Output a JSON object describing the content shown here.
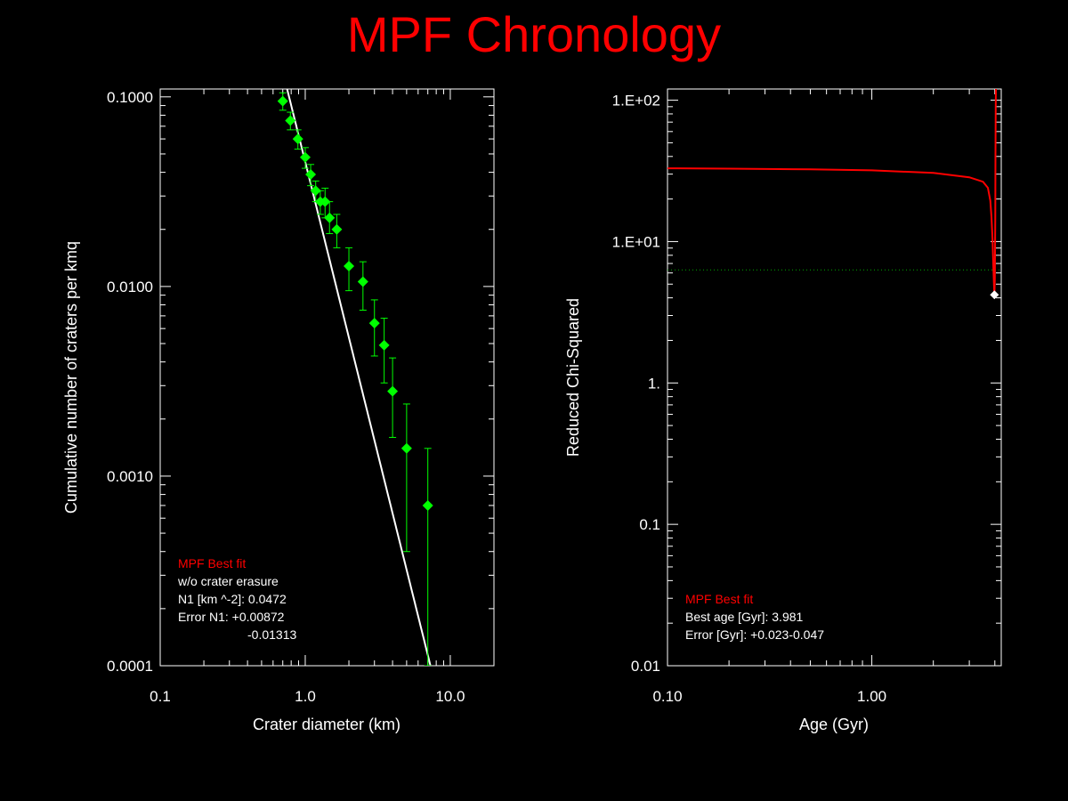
{
  "title": "MPF Chronology",
  "colors": {
    "title": "#ff0000",
    "points": "#00ff00",
    "fit_line": "#ffffff",
    "chi_curve": "#ff0000",
    "chi_threshold": "#00aa00",
    "best_marker": "#ffffff",
    "axes": "#ffffff"
  },
  "chart_data": [
    {
      "type": "scatter",
      "xlabel": "Crater diameter (km)",
      "ylabel": "Cumulative number of craters per kmq",
      "xscale": "log",
      "yscale": "log",
      "xlim": [
        0.1,
        20
      ],
      "ylim": [
        0.0001,
        0.11
      ],
      "x_ticks": [
        "0.1",
        "1.0",
        "10.0"
      ],
      "x_tick_values": [
        0.1,
        1.0,
        10.0
      ],
      "y_ticks": [
        "0.0001",
        "0.0010",
        "0.0100",
        "0.1000"
      ],
      "y_tick_values": [
        0.0001,
        0.001,
        0.01,
        0.1
      ],
      "series": [
        {
          "type": "scatter",
          "marker": "diamond",
          "x": [
            0.7,
            0.79,
            0.89,
            1.0,
            1.09,
            1.18,
            1.27,
            1.37,
            1.47,
            1.65,
            2.0,
            2.5,
            3.0,
            3.5,
            4.0,
            5.0,
            7.0
          ],
          "y": [
            0.095,
            0.075,
            0.06,
            0.048,
            0.039,
            0.032,
            0.028,
            0.028,
            0.023,
            0.02,
            0.0128,
            0.0106,
            0.0064,
            0.0049,
            0.0028,
            0.0014,
            0.0007
          ],
          "yerr_low": [
            0.085,
            0.067,
            0.053,
            0.042,
            0.034,
            0.028,
            0.024,
            0.023,
            0.019,
            0.016,
            0.0095,
            0.0075,
            0.0043,
            0.0031,
            0.0016,
            0.0004,
            0.0001
          ],
          "yerr_high": [
            0.105,
            0.083,
            0.067,
            0.054,
            0.044,
            0.036,
            0.032,
            0.033,
            0.028,
            0.024,
            0.016,
            0.0135,
            0.0085,
            0.0068,
            0.0042,
            0.0024,
            0.0014
          ]
        },
        {
          "type": "line",
          "x": [
            0.75,
            7.3
          ],
          "y": [
            0.11,
            0.0001
          ]
        }
      ],
      "annotations": {
        "label": "MPF Best fit",
        "line1": "w/o crater erasure",
        "line2": "N1 [km ^-2]: 0.0472",
        "line3": "Error N1: +0.00872",
        "line4": "-0.01313"
      }
    },
    {
      "type": "line",
      "xlabel": "Age (Gyr)",
      "ylabel": "Reduced Chi-Squared",
      "xscale": "log",
      "yscale": "log",
      "xlim": [
        0.1,
        4.3
      ],
      "ylim": [
        0.01,
        120
      ],
      "x_ticks": [
        "0.10",
        "1.00"
      ],
      "x_tick_values": [
        0.1,
        1.0
      ],
      "y_ticks": [
        "0.01",
        "0.1",
        "1.",
        "1.E+01",
        "1.E+02"
      ],
      "y_tick_values": [
        0.01,
        0.1,
        1,
        10,
        100
      ],
      "series": [
        {
          "type": "line",
          "x": [
            0.1,
            0.2,
            0.5,
            1.0,
            2.0,
            3.0,
            3.5,
            3.7,
            3.8,
            3.85,
            3.9,
            3.93,
            3.96,
            3.981,
            4.0,
            4.02,
            4.03,
            4.04,
            4.05
          ],
          "y": [
            33,
            32.8,
            32.4,
            31.9,
            30.6,
            28.5,
            26.5,
            24.0,
            19.5,
            15.0,
            10.0,
            7.0,
            5.0,
            4.2,
            5.5,
            15.0,
            40.0,
            90.0,
            120.0
          ]
        }
      ],
      "threshold": 6.3,
      "best_point": {
        "x": 3.981,
        "y": 4.2
      },
      "annotations": {
        "label": "MPF Best fit",
        "line1": "Best age [Gyr]: 3.981",
        "line2": "Error [Gyr]: +0.023-0.047"
      }
    }
  ]
}
